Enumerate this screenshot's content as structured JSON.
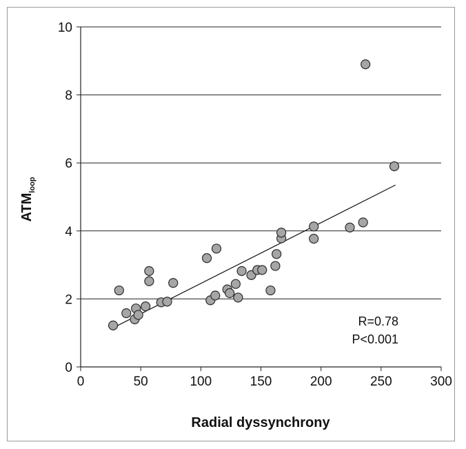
{
  "chart_data": {
    "type": "scatter",
    "xlabel": "Radial dyssynchrony",
    "ylabel_main": "ATM",
    "ylabel_sub": "loop",
    "xlim": [
      0,
      300
    ],
    "ylim": [
      0,
      10
    ],
    "xticks": [
      "0",
      "50",
      "100",
      "150",
      "200",
      "250",
      "300"
    ],
    "yticks": [
      "0",
      "2",
      "4",
      "6",
      "8",
      "10"
    ],
    "grid": "horizontal",
    "point_color": "#a6a6a6",
    "annotations": [
      "R=0.78",
      "P<0.001"
    ],
    "trendline": {
      "x": [
        27,
        262
      ],
      "y": [
        1.15,
        5.35
      ]
    },
    "points": [
      {
        "x": 27,
        "y": 1.22
      },
      {
        "x": 32,
        "y": 2.25
      },
      {
        "x": 38,
        "y": 1.58
      },
      {
        "x": 45,
        "y": 1.4
      },
      {
        "x": 46,
        "y": 1.72
      },
      {
        "x": 48,
        "y": 1.53
      },
      {
        "x": 54,
        "y": 1.78
      },
      {
        "x": 57,
        "y": 2.52
      },
      {
        "x": 57,
        "y": 2.82
      },
      {
        "x": 67,
        "y": 1.9
      },
      {
        "x": 72,
        "y": 1.92
      },
      {
        "x": 77,
        "y": 2.47
      },
      {
        "x": 105,
        "y": 3.2
      },
      {
        "x": 108,
        "y": 1.96
      },
      {
        "x": 112,
        "y": 2.1
      },
      {
        "x": 113,
        "y": 3.48
      },
      {
        "x": 122,
        "y": 2.28
      },
      {
        "x": 124,
        "y": 2.17
      },
      {
        "x": 129,
        "y": 2.44
      },
      {
        "x": 131,
        "y": 2.04
      },
      {
        "x": 134,
        "y": 2.82
      },
      {
        "x": 142,
        "y": 2.7
      },
      {
        "x": 147,
        "y": 2.85
      },
      {
        "x": 151,
        "y": 2.85
      },
      {
        "x": 158,
        "y": 2.25
      },
      {
        "x": 162,
        "y": 2.97
      },
      {
        "x": 163,
        "y": 3.32
      },
      {
        "x": 167,
        "y": 3.78
      },
      {
        "x": 167,
        "y": 3.95
      },
      {
        "x": 194,
        "y": 4.13
      },
      {
        "x": 194,
        "y": 3.77
      },
      {
        "x": 224,
        "y": 4.1
      },
      {
        "x": 235,
        "y": 4.25
      },
      {
        "x": 237,
        "y": 8.9
      },
      {
        "x": 261,
        "y": 5.9
      }
    ]
  }
}
